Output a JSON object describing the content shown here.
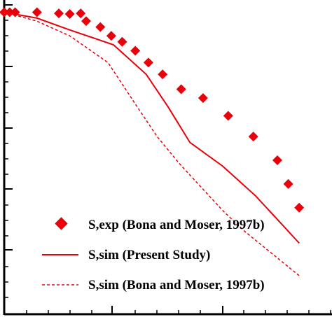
{
  "colors": {
    "series": "#e8000b",
    "axis": "#000000"
  },
  "chart_data": {
    "type": "scatter",
    "title": "",
    "xlabel": "",
    "ylabel": "",
    "xlim": [
      0,
      3.0
    ],
    "ylim": [
      -5.1,
      0.1
    ],
    "grid": false,
    "legend": "bottom-right",
    "series": [
      {
        "name": "S,exp (Bona and Moser, 1997b)",
        "kind": "markers",
        "marker": "diamond",
        "x": [
          0.0,
          0.05,
          0.1,
          0.3,
          0.5,
          0.6,
          0.7,
          0.75,
          0.88,
          0.98,
          1.08,
          1.2,
          1.32,
          1.45,
          1.62,
          1.82,
          2.05,
          2.28,
          2.5,
          2.6,
          2.7
        ],
        "y": [
          0.0,
          0.0,
          0.0,
          0.0,
          -0.02,
          -0.03,
          -0.02,
          -0.15,
          -0.25,
          -0.4,
          -0.5,
          -0.65,
          -0.85,
          -1.05,
          -1.3,
          -1.45,
          -1.75,
          -2.1,
          -2.5,
          -2.9,
          -3.3
        ]
      },
      {
        "name": "S,sim (Present Study)",
        "kind": "line",
        "dash": "solid",
        "x": [
          0.0,
          0.3,
          0.6,
          1.0,
          1.3,
          1.5,
          1.7,
          2.0,
          2.3,
          2.5,
          2.7
        ],
        "y": [
          0.0,
          -0.1,
          -0.3,
          -0.55,
          -1.05,
          -1.6,
          -2.2,
          -2.6,
          -3.1,
          -3.5,
          -3.9
        ]
      },
      {
        "name": "S,sim (Bona and Moser, 1997b)",
        "kind": "line",
        "dash": "dashed",
        "x": [
          0.0,
          0.3,
          0.6,
          0.95,
          1.2,
          1.4,
          1.6,
          1.8,
          2.0,
          2.2,
          2.4,
          2.6,
          2.7
        ],
        "y": [
          0.0,
          -0.15,
          -0.4,
          -0.85,
          -1.55,
          -2.1,
          -2.55,
          -2.95,
          -3.35,
          -3.7,
          -4.0,
          -4.3,
          -4.45
        ]
      }
    ]
  }
}
